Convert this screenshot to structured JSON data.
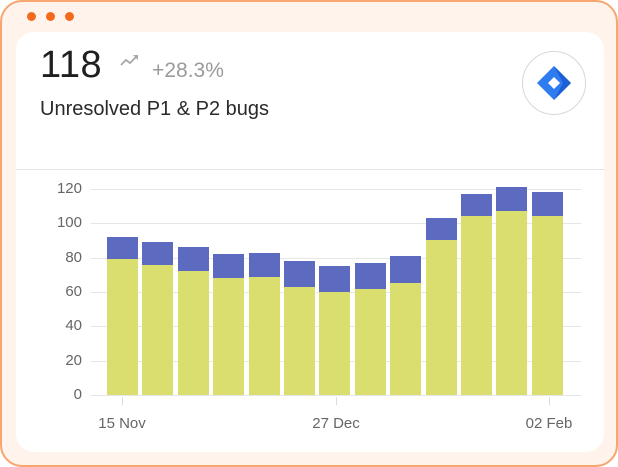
{
  "window": {
    "dots": 3,
    "dot_color": "#f26b1d",
    "border_color": "#f6a66e"
  },
  "header": {
    "value": "118",
    "trend_icon": "trending-up-icon",
    "change": "+28.3%",
    "subtitle": "Unresolved P1 & P2 bugs",
    "logo_icon": "jira-logo-icon"
  },
  "chart_data": {
    "type": "bar",
    "stacked": true,
    "title": "Unresolved P1 & P2 bugs",
    "xlabel": "",
    "ylabel": "",
    "ylim": [
      0,
      120
    ],
    "yticks": [
      0,
      20,
      40,
      60,
      80,
      100,
      120
    ],
    "grid": true,
    "legend": "none",
    "x_tick_labels": [
      "15 Nov",
      "27 Dec",
      "02 Feb"
    ],
    "categories": [
      "1",
      "2",
      "3",
      "4",
      "5",
      "6",
      "7",
      "8",
      "9",
      "10",
      "11",
      "12",
      "13"
    ],
    "series": [
      {
        "name": "P2",
        "color": "#dade6e",
        "values": [
          79,
          76,
          72,
          68,
          69,
          63,
          60,
          62,
          65,
          90,
          104,
          107,
          104
        ]
      },
      {
        "name": "P1",
        "color": "#5c6bbf",
        "values": [
          13,
          13,
          14,
          14,
          14,
          15,
          15,
          15,
          16,
          13,
          13,
          14,
          14
        ]
      }
    ],
    "totals": [
      92,
      89,
      86,
      82,
      83,
      78,
      75,
      77,
      81,
      103,
      117,
      121,
      118
    ]
  }
}
